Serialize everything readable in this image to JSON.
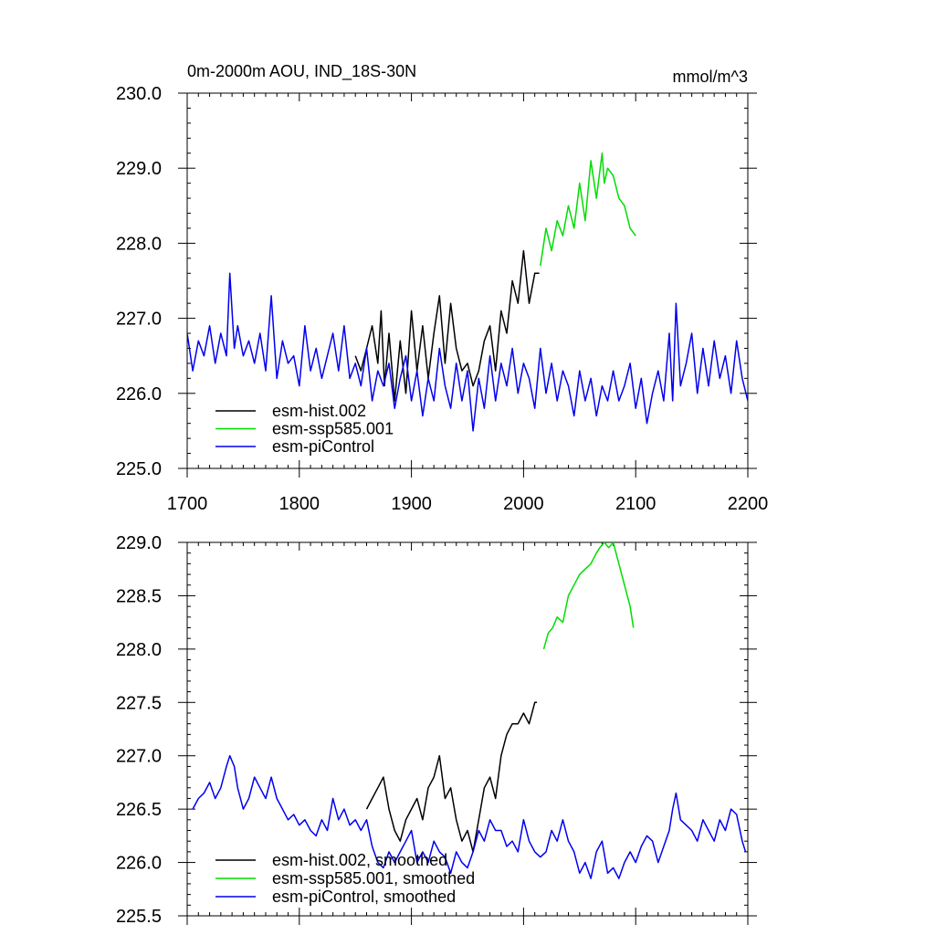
{
  "chart_data": [
    {
      "type": "line",
      "title": "0m-2000m AOU, IND_18S-30N",
      "units": "mmol/m^3",
      "xlim": [
        1700,
        2200
      ],
      "ylim": [
        225.0,
        230.0
      ],
      "x_ticks": [
        1700,
        1800,
        1900,
        2000,
        2100,
        2200
      ],
      "x_tick_labels": [
        "1700",
        "1800",
        "1900",
        "2000",
        "2100",
        "2200"
      ],
      "y_ticks": [
        225.0,
        226.0,
        227.0,
        228.0,
        229.0,
        230.0
      ],
      "y_tick_labels": [
        "225.0",
        "226.0",
        "227.0",
        "228.0",
        "229.0",
        "230.0"
      ],
      "legend_position": "bottom-left",
      "series": [
        {
          "name": "esm-hist.002",
          "color": "#000000",
          "x": [
            1850,
            1855,
            1860,
            1865,
            1870,
            1873,
            1876,
            1880,
            1885,
            1890,
            1895,
            1900,
            1905,
            1910,
            1915,
            1920,
            1925,
            1930,
            1935,
            1940,
            1945,
            1950,
            1955,
            1960,
            1965,
            1970,
            1975,
            1980,
            1985,
            1990,
            1995,
            2000,
            2005,
            2010,
            2014
          ],
          "y": [
            226.5,
            226.3,
            226.6,
            226.9,
            226.4,
            227.1,
            226.1,
            226.8,
            225.9,
            226.7,
            226.0,
            227.1,
            226.3,
            226.9,
            226.2,
            226.8,
            227.3,
            226.4,
            227.2,
            226.6,
            226.3,
            226.4,
            226.1,
            226.3,
            226.7,
            226.9,
            226.3,
            227.1,
            226.8,
            227.5,
            227.2,
            227.9,
            227.2,
            227.6,
            227.6
          ]
        },
        {
          "name": "esm-ssp585.001",
          "color": "#00dd00",
          "x": [
            2015,
            2020,
            2025,
            2030,
            2035,
            2040,
            2045,
            2050,
            2055,
            2060,
            2065,
            2070,
            2072,
            2075,
            2080,
            2085,
            2090,
            2095,
            2100
          ],
          "y": [
            227.7,
            228.2,
            227.9,
            228.3,
            228.1,
            228.5,
            228.2,
            228.8,
            228.3,
            229.1,
            228.6,
            229.2,
            228.8,
            229.0,
            228.9,
            228.6,
            228.5,
            228.2,
            228.1
          ]
        },
        {
          "name": "esm-piControl",
          "color": "#0000ee",
          "x": [
            1700,
            1705,
            1710,
            1715,
            1720,
            1725,
            1730,
            1735,
            1738,
            1742,
            1745,
            1750,
            1755,
            1760,
            1765,
            1770,
            1775,
            1780,
            1785,
            1790,
            1795,
            1800,
            1805,
            1810,
            1815,
            1820,
            1825,
            1830,
            1835,
            1840,
            1845,
            1850,
            1855,
            1860,
            1865,
            1870,
            1875,
            1880,
            1885,
            1890,
            1895,
            1900,
            1905,
            1910,
            1915,
            1920,
            1925,
            1930,
            1935,
            1940,
            1945,
            1950,
            1955,
            1960,
            1965,
            1970,
            1975,
            1980,
            1985,
            1990,
            1995,
            2000,
            2005,
            2010,
            2015,
            2020,
            2025,
            2030,
            2035,
            2040,
            2045,
            2050,
            2055,
            2060,
            2065,
            2070,
            2075,
            2080,
            2085,
            2090,
            2095,
            2100,
            2105,
            2110,
            2115,
            2120,
            2125,
            2130,
            2133,
            2136,
            2140,
            2145,
            2150,
            2155,
            2160,
            2165,
            2170,
            2175,
            2180,
            2185,
            2190,
            2195,
            2200
          ],
          "y": [
            226.8,
            226.3,
            226.7,
            226.5,
            226.9,
            226.4,
            226.8,
            226.5,
            227.6,
            226.6,
            226.9,
            226.5,
            226.7,
            226.4,
            226.8,
            226.3,
            227.3,
            226.2,
            226.7,
            226.4,
            226.5,
            226.1,
            226.9,
            226.3,
            226.6,
            226.2,
            226.5,
            226.8,
            226.3,
            226.9,
            226.2,
            226.4,
            226.1,
            226.6,
            225.9,
            226.3,
            226.1,
            226.4,
            225.8,
            226.2,
            226.5,
            225.9,
            226.3,
            225.7,
            226.2,
            225.9,
            226.6,
            226.1,
            225.8,
            226.4,
            225.9,
            226.3,
            225.5,
            226.2,
            225.8,
            226.5,
            225.9,
            226.4,
            226.1,
            226.6,
            226.0,
            226.4,
            226.2,
            225.8,
            226.6,
            226.0,
            226.4,
            225.9,
            226.3,
            226.1,
            225.7,
            226.3,
            225.9,
            226.2,
            225.7,
            226.1,
            225.9,
            226.3,
            225.9,
            226.1,
            226.4,
            225.8,
            226.2,
            225.6,
            226.0,
            226.3,
            225.9,
            226.8,
            225.9,
            227.2,
            226.1,
            226.4,
            226.8,
            226.0,
            226.6,
            226.1,
            226.7,
            226.2,
            226.5,
            226.0,
            226.7,
            226.2,
            225.9
          ]
        }
      ]
    },
    {
      "type": "line",
      "title": "",
      "xlim": [
        1700,
        2200
      ],
      "ylim": [
        225.5,
        229.0
      ],
      "x_ticks": [
        1700,
        1800,
        1900,
        2000,
        2100,
        2200
      ],
      "y_ticks": [
        225.5,
        226.0,
        226.5,
        227.0,
        227.5,
        228.0,
        228.5,
        229.0
      ],
      "y_tick_labels": [
        "225.5",
        "226.0",
        "226.5",
        "227.0",
        "227.5",
        "228.0",
        "228.5",
        "229.0"
      ],
      "legend_position": "bottom-left",
      "series": [
        {
          "name": "esm-hist.002, smoothed",
          "color": "#000000",
          "x": [
            1860,
            1865,
            1870,
            1875,
            1880,
            1885,
            1890,
            1895,
            1900,
            1905,
            1910,
            1915,
            1920,
            1925,
            1930,
            1935,
            1940,
            1945,
            1950,
            1955,
            1960,
            1965,
            1970,
            1975,
            1980,
            1985,
            1990,
            1995,
            2000,
            2005,
            2010,
            2012
          ],
          "y": [
            226.5,
            226.6,
            226.7,
            226.8,
            226.5,
            226.3,
            226.2,
            226.4,
            226.5,
            226.6,
            226.4,
            226.7,
            226.8,
            227.0,
            226.6,
            226.7,
            226.4,
            226.2,
            226.3,
            226.1,
            226.4,
            226.7,
            226.8,
            226.6,
            227.0,
            227.2,
            227.3,
            227.3,
            227.4,
            227.3,
            227.5,
            227.5
          ]
        },
        {
          "name": "esm-ssp585.001, smoothed",
          "color": "#00dd00",
          "x": [
            2018,
            2022,
            2026,
            2030,
            2035,
            2040,
            2045,
            2050,
            2055,
            2060,
            2065,
            2068,
            2072,
            2076,
            2080,
            2085,
            2090,
            2095,
            2098
          ],
          "y": [
            228.0,
            228.15,
            228.2,
            228.3,
            228.25,
            228.5,
            228.6,
            228.7,
            228.75,
            228.8,
            228.9,
            228.95,
            229.0,
            228.95,
            229.0,
            228.8,
            228.6,
            228.4,
            228.2
          ]
        },
        {
          "name": "esm-piControl, smoothed",
          "color": "#0000ee",
          "x": [
            1705,
            1710,
            1715,
            1720,
            1725,
            1730,
            1735,
            1738,
            1742,
            1745,
            1750,
            1755,
            1760,
            1765,
            1770,
            1775,
            1780,
            1785,
            1790,
            1795,
            1800,
            1805,
            1810,
            1815,
            1820,
            1825,
            1830,
            1835,
            1840,
            1845,
            1850,
            1855,
            1860,
            1865,
            1870,
            1875,
            1880,
            1885,
            1890,
            1895,
            1900,
            1905,
            1910,
            1915,
            1920,
            1925,
            1930,
            1935,
            1940,
            1945,
            1950,
            1955,
            1960,
            1965,
            1970,
            1975,
            1980,
            1985,
            1990,
            1995,
            2000,
            2005,
            2010,
            2015,
            2020,
            2025,
            2030,
            2035,
            2040,
            2045,
            2050,
            2055,
            2060,
            2065,
            2070,
            2075,
            2080,
            2085,
            2090,
            2095,
            2100,
            2105,
            2110,
            2115,
            2120,
            2125,
            2130,
            2133,
            2136,
            2140,
            2145,
            2150,
            2155,
            2160,
            2165,
            2170,
            2175,
            2180,
            2185,
            2190,
            2195,
            2198
          ],
          "y": [
            226.5,
            226.6,
            226.65,
            226.75,
            226.6,
            226.7,
            226.9,
            227.0,
            226.9,
            226.7,
            226.5,
            226.6,
            226.8,
            226.7,
            226.6,
            226.8,
            226.6,
            226.5,
            226.4,
            226.45,
            226.35,
            226.4,
            226.3,
            226.25,
            226.4,
            226.3,
            226.6,
            226.4,
            226.5,
            226.35,
            226.4,
            226.3,
            226.4,
            226.15,
            226.0,
            225.95,
            226.1,
            226.0,
            226.1,
            226.2,
            226.3,
            226.0,
            226.1,
            226.0,
            226.2,
            226.1,
            226.05,
            225.9,
            226.1,
            226.0,
            225.95,
            226.1,
            226.3,
            226.2,
            226.4,
            226.3,
            226.3,
            226.15,
            226.2,
            226.1,
            226.4,
            226.2,
            226.1,
            226.05,
            226.1,
            226.3,
            226.2,
            226.4,
            226.2,
            226.1,
            225.9,
            226.0,
            225.85,
            226.1,
            226.2,
            225.9,
            225.95,
            225.85,
            226.0,
            226.1,
            226.0,
            226.15,
            226.25,
            226.2,
            226.0,
            226.15,
            226.3,
            226.5,
            226.65,
            226.4,
            226.35,
            226.3,
            226.2,
            226.4,
            226.3,
            226.2,
            226.4,
            226.3,
            226.5,
            226.45,
            226.2,
            226.1
          ]
        }
      ]
    }
  ]
}
